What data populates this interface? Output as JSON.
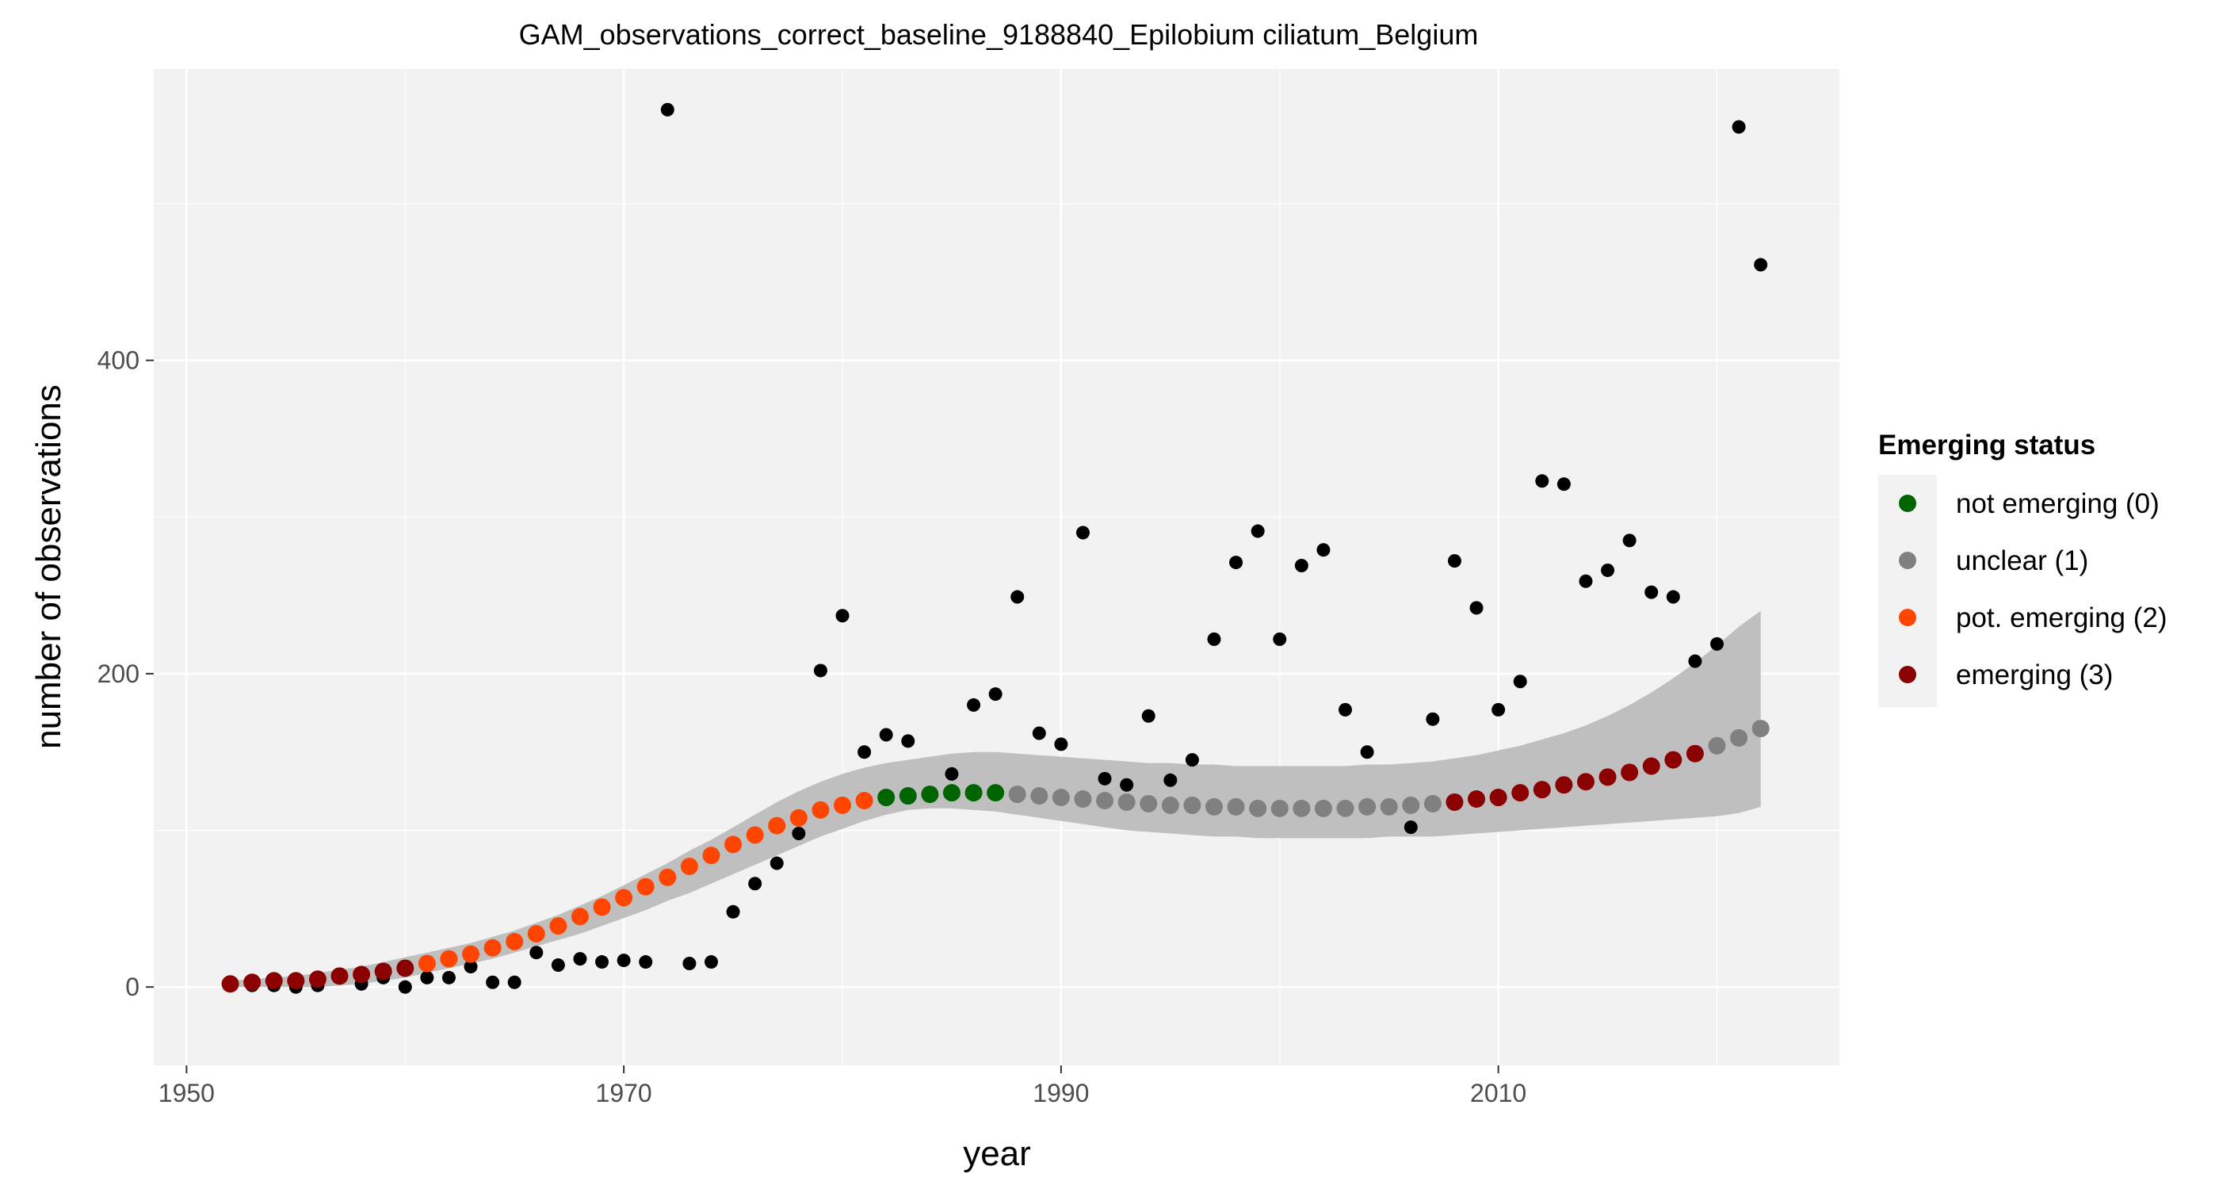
{
  "chart_data": {
    "type": "scatter",
    "title": "GAM_observations_correct_baseline_9188840_Epilobium ciliatum_Belgium",
    "xlabel": "year",
    "ylabel": "number of observations",
    "xlim": [
      1948.5,
      2025.6
    ],
    "ylim": [
      -50,
      586
    ],
    "x_ticks": [
      1950,
      1970,
      1990,
      2010
    ],
    "y_ticks": [
      0,
      200,
      400
    ],
    "x_tick_labels": [
      "1950",
      "1970",
      "1990",
      "2010"
    ],
    "y_tick_labels": [
      "0",
      "200",
      "400"
    ],
    "grid": true,
    "legend_position": "right",
    "legend": {
      "title": "Emerging status",
      "entries": [
        {
          "label": "not emerging (0)",
          "color": "#006400"
        },
        {
          "label": "unclear (1)",
          "color": "#808080"
        },
        {
          "label": "pot. emerging (2)",
          "color": "#ff4500"
        },
        {
          "label": "emerging (3)",
          "color": "#8b0000"
        }
      ]
    },
    "colors": {
      "observed": "#000000",
      "band": "#bfbfbf",
      "panel": "#f2f2f2",
      "grid": "#ffffff"
    },
    "observed": {
      "x": [
        1952,
        1953,
        1954,
        1955,
        1956,
        1957,
        1958,
        1959,
        1960,
        1961,
        1962,
        1963,
        1964,
        1965,
        1966,
        1967,
        1968,
        1969,
        1970,
        1971,
        1972,
        1973,
        1974,
        1975,
        1976,
        1977,
        1978,
        1979,
        1980,
        1981,
        1982,
        1983,
        1985,
        1986,
        1987,
        1988,
        1989,
        1990,
        1991,
        1992,
        1993,
        1994,
        1995,
        1996,
        1997,
        1998,
        1999,
        2000,
        2001,
        2002,
        2003,
        2004,
        2005,
        2006,
        2007,
        2008,
        2009,
        2010,
        2011,
        2012,
        2013,
        2014,
        2015,
        2016,
        2017,
        2018,
        2019,
        2020,
        2021,
        2022
      ],
      "y": [
        2,
        1,
        1,
        0,
        1,
        6,
        2,
        6,
        0,
        6,
        6,
        13,
        3,
        3,
        22,
        14,
        18,
        16,
        17,
        16,
        560,
        15,
        16,
        48,
        66,
        79,
        98,
        202,
        237,
        150,
        161,
        157,
        136,
        180,
        187,
        249,
        162,
        155,
        290,
        133,
        129,
        173,
        132,
        145,
        222,
        271,
        291,
        222,
        269,
        279,
        177,
        150,
        116,
        102,
        171,
        272,
        242,
        177,
        195,
        323,
        321,
        259,
        266,
        285,
        252,
        249,
        208,
        219,
        549,
        461
      ]
    },
    "fitted": {
      "x": [
        1952,
        1953,
        1954,
        1955,
        1956,
        1957,
        1958,
        1959,
        1960,
        1961,
        1962,
        1963,
        1964,
        1965,
        1966,
        1967,
        1968,
        1969,
        1970,
        1971,
        1972,
        1973,
        1974,
        1975,
        1976,
        1977,
        1978,
        1979,
        1980,
        1981,
        1982,
        1983,
        1984,
        1985,
        1986,
        1987,
        1988,
        1989,
        1990,
        1991,
        1992,
        1993,
        1994,
        1995,
        1996,
        1997,
        1998,
        1999,
        2000,
        2001,
        2002,
        2003,
        2004,
        2005,
        2006,
        2007,
        2008,
        2009,
        2010,
        2011,
        2012,
        2013,
        2014,
        2015,
        2016,
        2017,
        2018,
        2019,
        2020,
        2021,
        2022
      ],
      "y": [
        2,
        3,
        4,
        4,
        5,
        7,
        8,
        10,
        12,
        15,
        18,
        21,
        25,
        29,
        34,
        39,
        45,
        51,
        57,
        64,
        70,
        77,
        84,
        91,
        97,
        103,
        108,
        113,
        116,
        119,
        121,
        122,
        123,
        124,
        124,
        124,
        123,
        122,
        121,
        120,
        119,
        118,
        117,
        116,
        116,
        115,
        115,
        114,
        114,
        114,
        114,
        114,
        115,
        115,
        116,
        117,
        118,
        120,
        121,
        124,
        126,
        129,
        131,
        134,
        137,
        141,
        145,
        149,
        154,
        159,
        165
      ],
      "lower": [
        0,
        0,
        0,
        0,
        0,
        1,
        2,
        4,
        6,
        9,
        12,
        15,
        18,
        22,
        26,
        30,
        34,
        39,
        44,
        49,
        55,
        60,
        66,
        72,
        78,
        84,
        90,
        96,
        101,
        106,
        110,
        113,
        114,
        114,
        113,
        112,
        110,
        108,
        106,
        104,
        102,
        100,
        99,
        98,
        97,
        96,
        96,
        95,
        95,
        95,
        95,
        95,
        95,
        96,
        96,
        96,
        97,
        98,
        99,
        100,
        101,
        102,
        103,
        104,
        105,
        106,
        107,
        108,
        109,
        111,
        115
      ],
      "upper": [
        4,
        5,
        6,
        7,
        9,
        11,
        13,
        16,
        19,
        22,
        25,
        28,
        32,
        36,
        41,
        46,
        52,
        58,
        65,
        72,
        79,
        87,
        94,
        102,
        110,
        118,
        125,
        131,
        136,
        140,
        143,
        145,
        147,
        149,
        150,
        150,
        149,
        148,
        147,
        146,
        145,
        144,
        143,
        143,
        142,
        142,
        141,
        141,
        141,
        141,
        141,
        141,
        142,
        142,
        143,
        144,
        146,
        148,
        151,
        154,
        158,
        162,
        167,
        173,
        180,
        188,
        197,
        207,
        218,
        230,
        240
      ],
      "status": [
        3,
        3,
        3,
        3,
        3,
        3,
        3,
        3,
        3,
        2,
        2,
        2,
        2,
        2,
        2,
        2,
        2,
        2,
        2,
        2,
        2,
        2,
        2,
        2,
        2,
        2,
        2,
        2,
        2,
        2,
        0,
        0,
        0,
        0,
        0,
        0,
        1,
        1,
        1,
        1,
        1,
        1,
        1,
        1,
        1,
        1,
        1,
        1,
        1,
        1,
        1,
        1,
        1,
        1,
        1,
        1,
        3,
        3,
        3,
        3,
        3,
        3,
        3,
        3,
        3,
        3,
        3,
        3,
        1,
        1,
        1
      ]
    }
  }
}
